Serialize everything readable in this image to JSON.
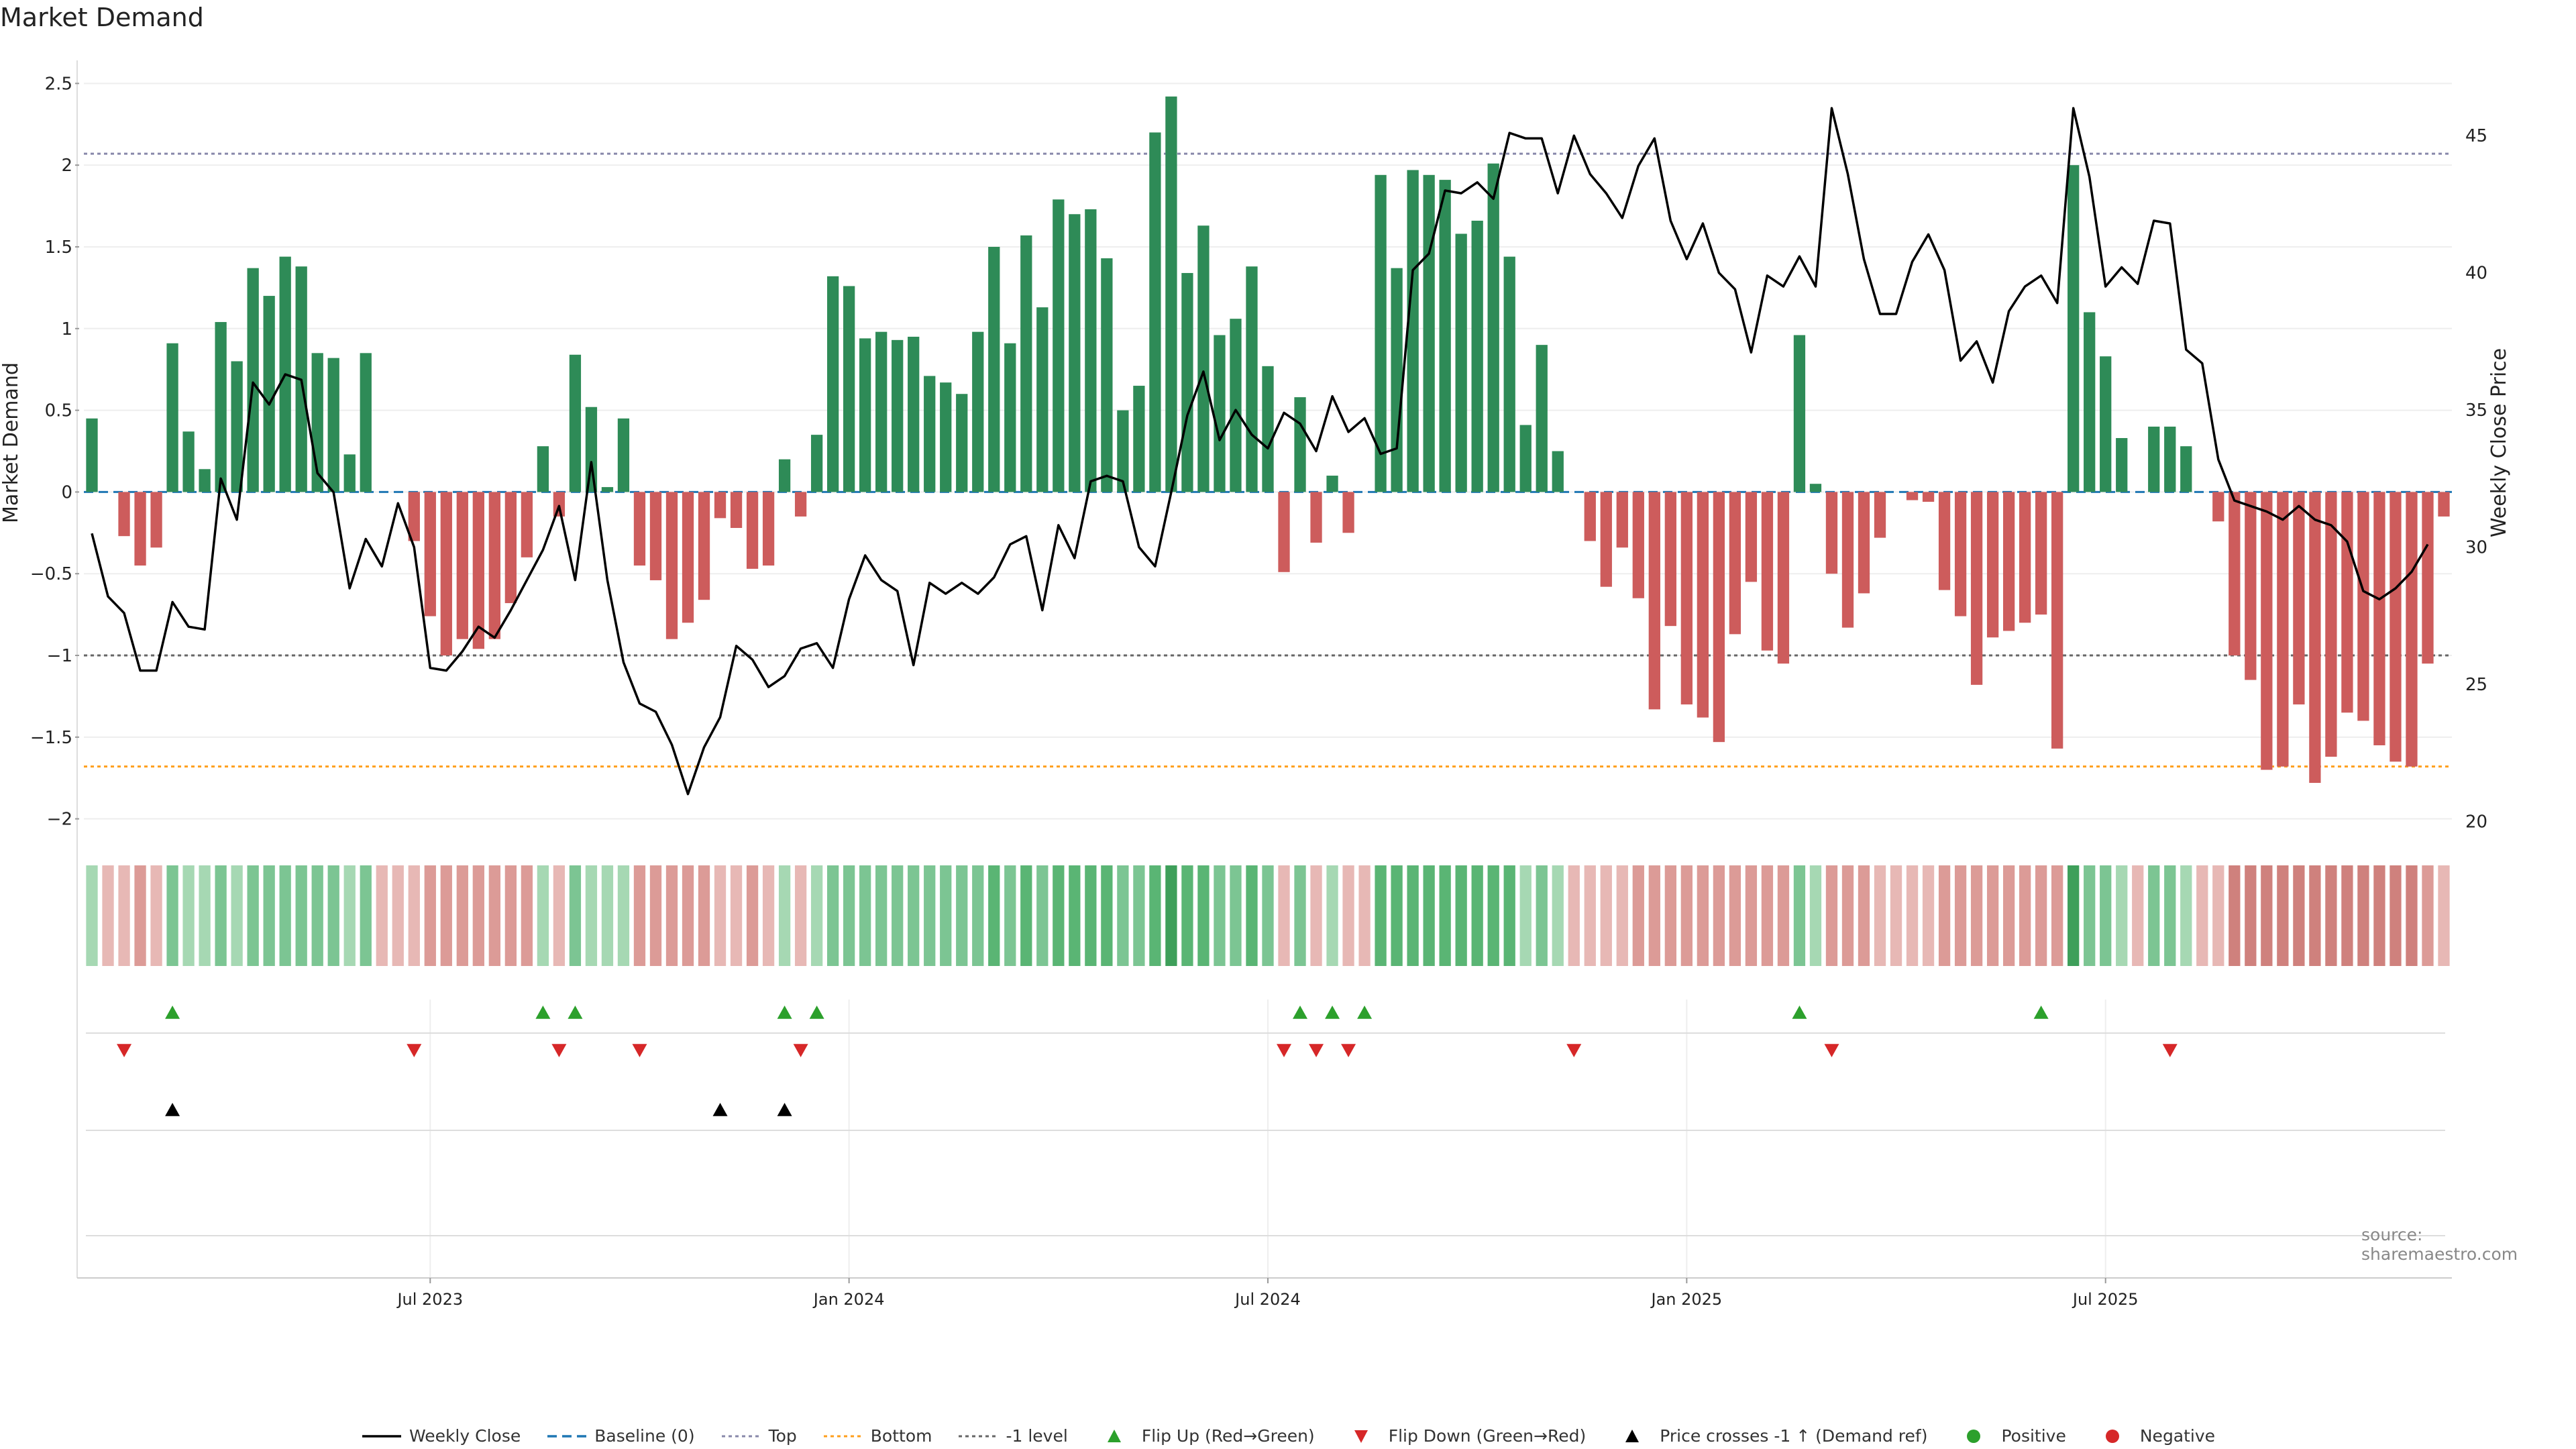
{
  "title": "Market Demand",
  "source": "source: sharemaestro.com",
  "colors": {
    "positive": "#2e8b57",
    "negative": "#cd5c5c",
    "price": "#000000",
    "baseline": "#1f77b4",
    "top": "#8888aa",
    "bottom": "#ff9f1c",
    "minus1": "#666666",
    "flip_up": "#2ca02c",
    "flip_down": "#d62728",
    "cross": "#000000",
    "pos_dot": "#2ca02c",
    "neg_dot": "#d62728"
  },
  "legend": [
    {
      "label": "Weekly Close",
      "symbol": "line",
      "color": "#000000"
    },
    {
      "label": "Baseline (0)",
      "symbol": "dash",
      "color": "#1f77b4"
    },
    {
      "label": "Top",
      "symbol": "dot",
      "color": "#8888aa"
    },
    {
      "label": "Bottom",
      "symbol": "dot",
      "color": "#ff9f1c"
    },
    {
      "label": "-1 level",
      "symbol": "dot",
      "color": "#666666"
    },
    {
      "label": "Flip Up (Red→Green)",
      "symbol": "tri-up",
      "color": "#2ca02c"
    },
    {
      "label": "Flip Down (Green→Red)",
      "symbol": "tri-down",
      "color": "#d62728"
    },
    {
      "label": "Price crosses -1 ↑ (Demand ref)",
      "symbol": "tri-up",
      "color": "#000000"
    },
    {
      "label": "Positive",
      "symbol": "circle",
      "color": "#2ca02c"
    },
    {
      "label": "Negative",
      "symbol": "circle",
      "color": "#d62728"
    }
  ],
  "chart_data": {
    "type": "bar",
    "title": "Market Demand",
    "ylabel": "Market Demand",
    "y2label": "Weekly Close Price",
    "ylim": [
      -2.1,
      2.6
    ],
    "y2lim": [
      19.5,
      47.5
    ],
    "y_ticks": [
      -2,
      -1.5,
      -1,
      -0.5,
      0,
      0.5,
      1,
      1.5,
      2,
      2.5
    ],
    "y_tick_labels": [
      "−2",
      "−1.5",
      "−1",
      "−0.5",
      "0",
      "0.5",
      "1",
      "1.5",
      "2",
      "2.5"
    ],
    "y2_ticks": [
      20,
      25,
      30,
      35,
      40,
      45
    ],
    "y2_tick_labels": [
      "20",
      "25",
      "30",
      "35",
      "40",
      "45"
    ],
    "x_ticks": [
      21.5,
      47.5,
      73.5,
      99.5,
      125.5
    ],
    "x_tick_labels": [
      "Jul 2023",
      "Jan 2024",
      "Jul 2024",
      "Jan 2025",
      "Jul 2025"
    ],
    "reference_lines": {
      "top": 2.07,
      "bottom": -1.68,
      "minus1": -1.0,
      "baseline": 0
    },
    "demand": [
      0.45,
      0.0,
      -0.27,
      -0.45,
      -0.34,
      0.91,
      0.37,
      0.14,
      1.04,
      0.8,
      1.37,
      1.2,
      1.44,
      1.38,
      0.85,
      0.82,
      0.23,
      0.85,
      0.0,
      0.0,
      -0.3,
      -0.76,
      -1.0,
      -0.9,
      -0.96,
      -0.9,
      -0.68,
      -0.4,
      0.28,
      -0.15,
      0.84,
      0.52,
      0.03,
      0.45,
      -0.45,
      -0.54,
      -0.9,
      -0.8,
      -0.66,
      -0.16,
      -0.22,
      -0.47,
      -0.45,
      0.2,
      -0.15,
      0.35,
      1.32,
      1.26,
      0.94,
      0.98,
      0.93,
      0.95,
      0.71,
      0.67,
      0.6,
      0.98,
      1.5,
      0.91,
      1.57,
      1.13,
      1.79,
      1.7,
      1.73,
      1.43,
      0.5,
      0.65,
      2.2,
      2.42,
      1.34,
      1.63,
      0.96,
      1.06,
      1.38,
      0.77,
      -0.49,
      0.58,
      -0.31,
      0.1,
      -0.25,
      0.0,
      1.94,
      1.37,
      1.97,
      1.94,
      1.91,
      1.58,
      1.66,
      2.01,
      1.44,
      0.41,
      0.9,
      0.25,
      0.0,
      -0.3,
      -0.58,
      -0.34,
      -0.65,
      -1.33,
      -0.82,
      -1.3,
      -1.38,
      -1.53,
      -0.87,
      -0.55,
      -0.97,
      -1.05,
      0.96,
      0.05,
      -0.5,
      -0.83,
      -0.62,
      -0.28,
      0.0,
      -0.05,
      -0.06,
      -0.6,
      -0.76,
      -1.18,
      -0.89,
      -0.85,
      -0.8,
      -0.75,
      -1.57,
      2.0,
      1.1,
      0.83,
      0.33,
      0.0,
      0.4,
      0.4,
      0.28,
      0.0,
      -0.18,
      -1.0,
      -1.15,
      -1.7,
      -1.68,
      -1.3,
      -1.78,
      -1.62,
      -1.35,
      -1.4,
      -1.55,
      -1.65,
      -1.68,
      -1.05,
      -0.15
    ],
    "price": [
      30.5,
      28.2,
      27.6,
      25.5,
      25.5,
      28.0,
      27.1,
      27.0,
      32.5,
      31.0,
      36.0,
      35.2,
      36.3,
      36.1,
      32.7,
      32.0,
      28.5,
      30.3,
      29.3,
      31.6,
      30.0,
      25.6,
      25.5,
      26.2,
      27.1,
      26.7,
      27.7,
      28.8,
      29.9,
      31.5,
      28.8,
      33.1,
      28.8,
      25.8,
      24.3,
      24.0,
      22.8,
      21.0,
      22.7,
      23.8,
      26.4,
      25.9,
      24.9,
      25.3,
      26.3,
      26.5,
      25.6,
      28.1,
      29.7,
      28.8,
      28.4,
      25.7,
      28.7,
      28.3,
      28.7,
      28.3,
      28.9,
      30.1,
      30.4,
      27.7,
      30.8,
      29.6,
      32.4,
      32.6,
      32.4,
      30.0,
      29.3,
      32.0,
      34.8,
      36.4,
      33.9,
      35.0,
      34.1,
      33.6,
      34.9,
      34.5,
      33.5,
      35.5,
      34.2,
      34.7,
      33.4,
      33.6,
      40.1,
      40.7,
      43.0,
      42.9,
      43.3,
      42.7,
      45.1,
      44.9,
      44.9,
      42.9,
      45.0,
      43.6,
      42.9,
      42.0,
      43.9,
      44.9,
      41.9,
      40.5,
      41.8,
      40.0,
      39.4,
      37.1,
      39.9,
      39.5,
      40.6,
      39.5,
      46.0,
      43.6,
      40.5,
      38.5,
      38.5,
      40.4,
      41.4,
      40.1,
      36.8,
      37.5,
      36.0,
      38.6,
      39.5,
      39.9,
      38.9,
      46.0,
      43.5,
      39.5,
      40.2,
      39.6,
      41.9,
      41.8,
      37.2,
      36.7,
      33.2,
      31.7,
      31.5,
      31.3,
      31.0,
      31.5,
      31.0,
      30.8,
      30.2,
      28.4,
      28.1,
      28.5,
      29.1,
      30.1
    ],
    "strip_intensity": [
      1,
      1,
      1,
      2,
      1,
      2,
      1,
      1,
      2,
      1,
      2,
      2,
      2,
      2,
      2,
      2,
      1,
      2,
      1,
      1,
      1,
      2,
      2,
      2,
      2,
      2,
      2,
      2,
      1,
      1,
      2,
      1,
      1,
      1,
      2,
      2,
      2,
      2,
      2,
      1,
      1,
      2,
      1,
      1,
      1,
      1,
      2,
      2,
      2,
      2,
      2,
      2,
      2,
      2,
      2,
      2,
      3,
      2,
      3,
      2,
      3,
      3,
      3,
      3,
      2,
      2,
      3,
      4,
      3,
      3,
      2,
      2,
      3,
      2,
      1,
      2,
      1,
      1,
      1,
      1,
      3,
      3,
      3,
      3,
      3,
      3,
      3,
      3,
      3,
      1,
      2,
      1,
      1,
      1,
      1,
      1,
      2,
      2,
      2,
      2,
      2,
      2,
      2,
      2,
      2,
      2,
      2,
      1,
      2,
      2,
      2,
      1,
      1,
      1,
      1,
      2,
      2,
      2,
      2,
      2,
      2,
      2,
      2,
      4,
      2,
      2,
      1,
      1,
      2,
      2,
      1,
      1,
      1,
      3,
      3,
      3,
      3,
      3,
      3,
      3,
      3,
      3,
      3,
      3,
      3,
      2,
      1
    ],
    "flip_up": [
      5,
      28,
      30,
      43,
      45,
      75,
      77,
      79,
      106,
      121
    ],
    "flip_down": [
      2,
      20,
      29,
      34,
      44,
      74,
      76,
      78,
      92,
      108,
      129
    ],
    "price_cross_up": [
      5,
      39,
      43
    ]
  }
}
